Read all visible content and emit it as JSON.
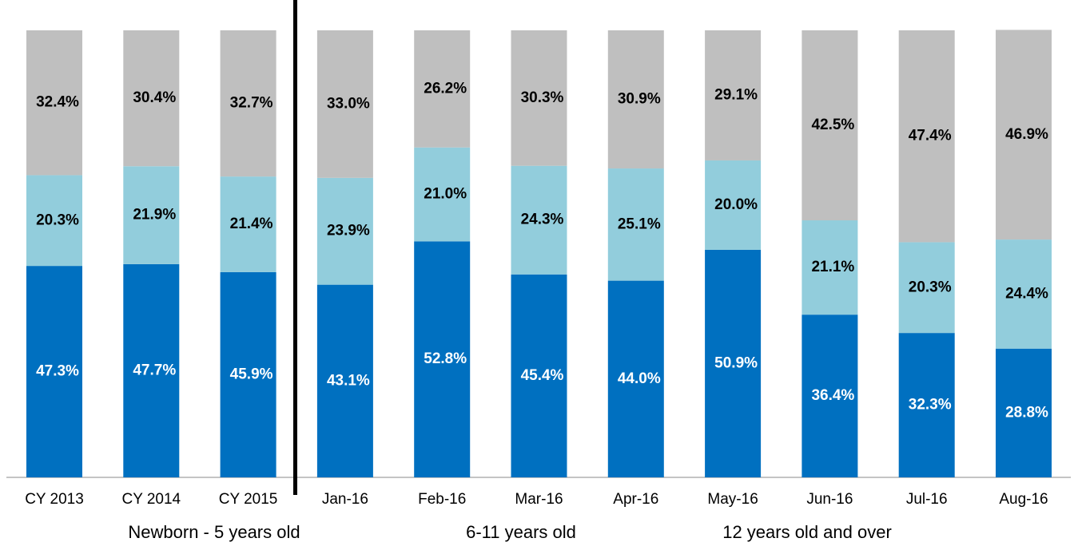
{
  "chart_data": {
    "type": "bar",
    "stacked": true,
    "categories": [
      "CY 2013",
      "CY 2014",
      "CY 2015",
      "Jan-16",
      "Feb-16",
      "Mar-16",
      "Apr-16",
      "May-16",
      "Jun-16",
      "Jul-16",
      "Aug-16"
    ],
    "ylim": [
      0,
      100
    ],
    "series": [
      {
        "name": "Newborn - 5 years old",
        "color": "#0070c0",
        "label_color": "#ffffff",
        "values": [
          47.3,
          47.7,
          45.9,
          43.1,
          52.8,
          45.4,
          44.0,
          50.9,
          36.4,
          32.3,
          28.8
        ],
        "value_labels": [
          "47.3%",
          "47.7%",
          "45.9%",
          "43.1%",
          "52.8%",
          "45.4%",
          "44.0%",
          "50.9%",
          "36.4%",
          "32.3%",
          "28.8%"
        ]
      },
      {
        "name": "6-11 years old",
        "color": "#92cddc",
        "label_color": "#000000",
        "values": [
          20.3,
          21.9,
          21.4,
          23.9,
          21.0,
          24.3,
          25.1,
          20.0,
          21.1,
          20.3,
          24.4
        ],
        "value_labels": [
          "20.3%",
          "21.9%",
          "21.4%",
          "23.9%",
          "21.0%",
          "24.3%",
          "25.1%",
          "20.0%",
          "21.1%",
          "20.3%",
          "24.4%"
        ]
      },
      {
        "name": "12 years old and over",
        "color": "#bfbfbf",
        "label_color": "#000000",
        "values": [
          32.4,
          30.4,
          32.7,
          33.0,
          26.2,
          30.3,
          30.9,
          29.1,
          42.5,
          47.4,
          46.9
        ],
        "value_labels": [
          "32.4%",
          "30.4%",
          "32.7%",
          "33.0%",
          "26.2%",
          "30.3%",
          "30.9%",
          "29.1%",
          "42.5%",
          "47.4%",
          "46.9%"
        ]
      }
    ]
  }
}
